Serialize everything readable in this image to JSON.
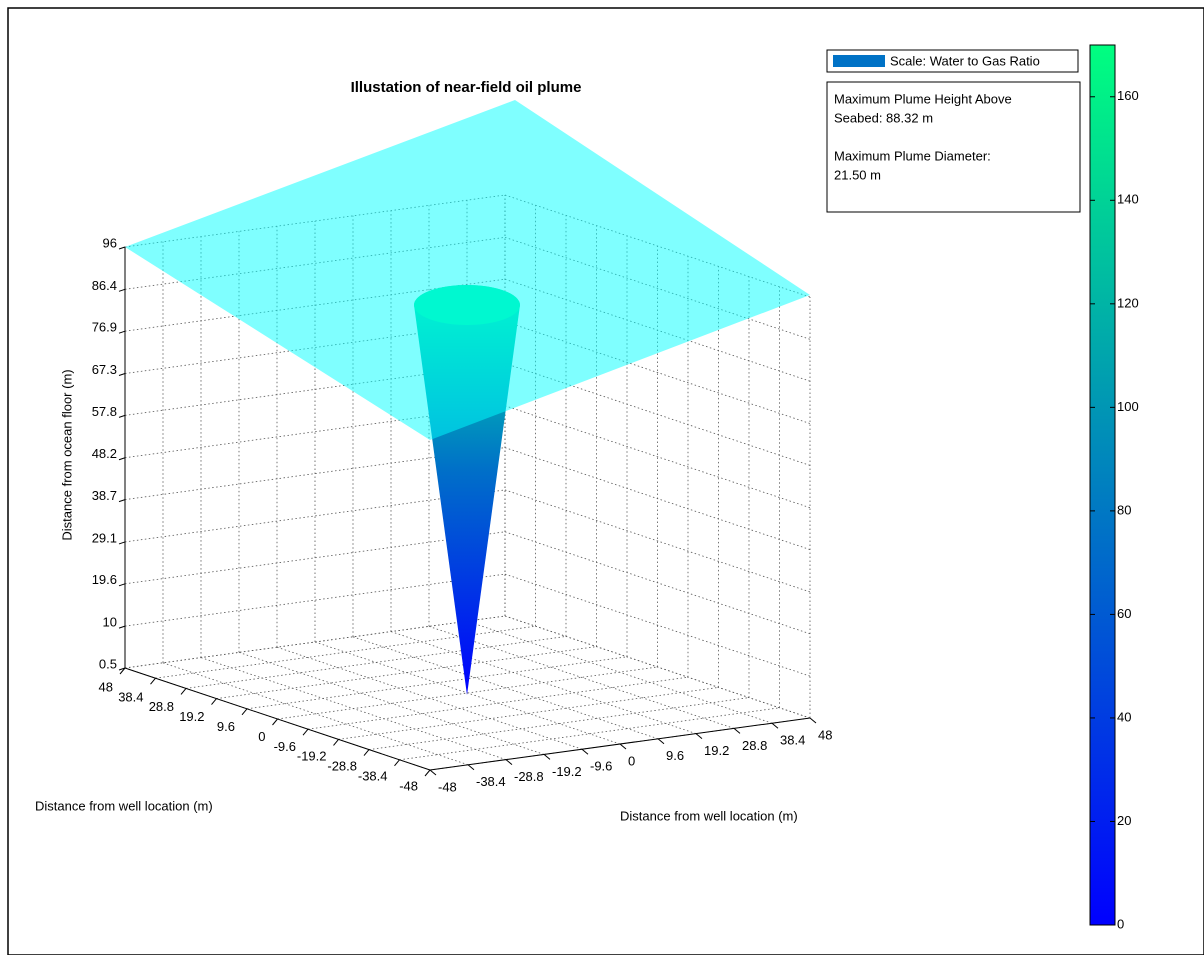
{
  "chart_data": {
    "type": "surface3d",
    "title": "Illustation of near-field oil plume",
    "xlabel": "Distance from well location (m)",
    "ylabel": "Distance from well location (m)",
    "zlabel": "Distance from ocean floor (m)",
    "xlim": [
      -48,
      48
    ],
    "xticks": [
      -48,
      -38.4,
      -28.8,
      -19.2,
      -9.6,
      0,
      9.6,
      19.2,
      28.8,
      38.4,
      48
    ],
    "ylim": [
      -48,
      48
    ],
    "yticks": [
      -48,
      -38.4,
      -28.8,
      -19.2,
      -9.6,
      0,
      9.6,
      19.2,
      28.8,
      38.4,
      48
    ],
    "zlim": [
      0.5,
      96
    ],
    "zticks": [
      0.5,
      10,
      19.6,
      29.1,
      38.7,
      48.2,
      57.8,
      67.3,
      76.9,
      86.4,
      96
    ],
    "grid": true,
    "legend": {
      "label": "Scale: Water to Gas Ratio",
      "color": "#0072c6"
    },
    "annotation": [
      "Maximum Plume Height Above",
      "Seabed: 88.32 m",
      "Maximum Plume Diameter:",
      "21.50 m"
    ],
    "colorbar": {
      "lim": [
        0,
        170
      ],
      "ticks": [
        0,
        20,
        40,
        60,
        80,
        100,
        120,
        140,
        160
      ],
      "colors": [
        "#0000ff",
        "#00ff80"
      ]
    }
  }
}
